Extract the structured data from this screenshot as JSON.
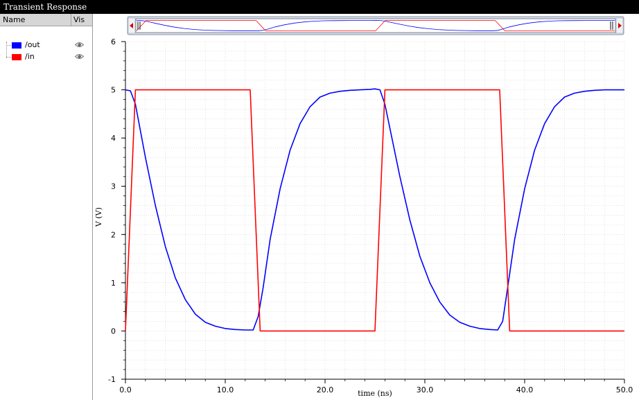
{
  "window": {
    "title": "Transient Response"
  },
  "panel": {
    "col_name": "Name",
    "col_vis": "Vis",
    "signals": [
      {
        "name": "/out",
        "color": "#0000ff",
        "icon": "eye-icon"
      },
      {
        "name": "/in",
        "color": "#ff0000",
        "icon": "eye-icon"
      }
    ]
  },
  "scrollbar": {
    "left_arrow_icon": "triangle-left-icon",
    "right_arrow_icon": "triangle-right-icon",
    "handle_icon": "grip-icon"
  },
  "chart_data": {
    "type": "line",
    "xlabel": "time (ns)",
    "ylabel": "V (V)",
    "xlim": [
      0,
      50
    ],
    "ylim": [
      -1,
      6
    ],
    "xticks": [
      "0.0",
      "10.0",
      "20.0",
      "30.0",
      "40.0",
      "50.0"
    ],
    "yticks": [
      "-1",
      "0",
      "1",
      "2",
      "3",
      "4",
      "5",
      "6"
    ],
    "grid": true,
    "series": [
      {
        "name": "/out",
        "color": "#0000ff",
        "x": [
          0,
          0.5,
          1.0,
          1.5,
          2.0,
          3.0,
          4.0,
          5.0,
          6.0,
          7.0,
          8.0,
          9.0,
          10.0,
          11.0,
          12.0,
          12.8,
          13.3,
          13.8,
          14.5,
          15.5,
          16.5,
          17.5,
          18.5,
          19.5,
          20.5,
          21.5,
          22.5,
          23.5,
          24.5,
          25.0,
          25.5,
          26.0,
          26.5,
          27.5,
          28.5,
          29.5,
          30.5,
          31.5,
          32.5,
          33.5,
          34.5,
          35.5,
          36.5,
          37.3,
          37.8,
          38.3,
          39.0,
          40.0,
          41.0,
          42.0,
          43.0,
          44.0,
          45.0,
          46.0,
          47.0,
          48.0,
          49.0,
          50.0
        ],
        "y": [
          5.0,
          4.98,
          4.7,
          4.15,
          3.6,
          2.6,
          1.75,
          1.1,
          0.65,
          0.35,
          0.18,
          0.1,
          0.05,
          0.03,
          0.02,
          0.02,
          0.3,
          0.9,
          1.9,
          2.95,
          3.75,
          4.3,
          4.65,
          4.85,
          4.93,
          4.97,
          4.99,
          5.0,
          5.01,
          5.02,
          5.0,
          4.7,
          4.2,
          3.2,
          2.3,
          1.55,
          1.0,
          0.6,
          0.33,
          0.18,
          0.1,
          0.05,
          0.03,
          0.02,
          0.2,
          0.9,
          1.9,
          2.95,
          3.75,
          4.3,
          4.65,
          4.85,
          4.93,
          4.97,
          4.99,
          5.0,
          5.0,
          5.0
        ]
      },
      {
        "name": "/in",
        "color": "#ff0000",
        "x": [
          0,
          1.0,
          12.5,
          13.5,
          25.0,
          26.0,
          37.5,
          38.5,
          50.0
        ],
        "y": [
          0,
          5,
          5,
          0,
          0,
          5,
          5,
          0,
          0
        ]
      }
    ]
  }
}
